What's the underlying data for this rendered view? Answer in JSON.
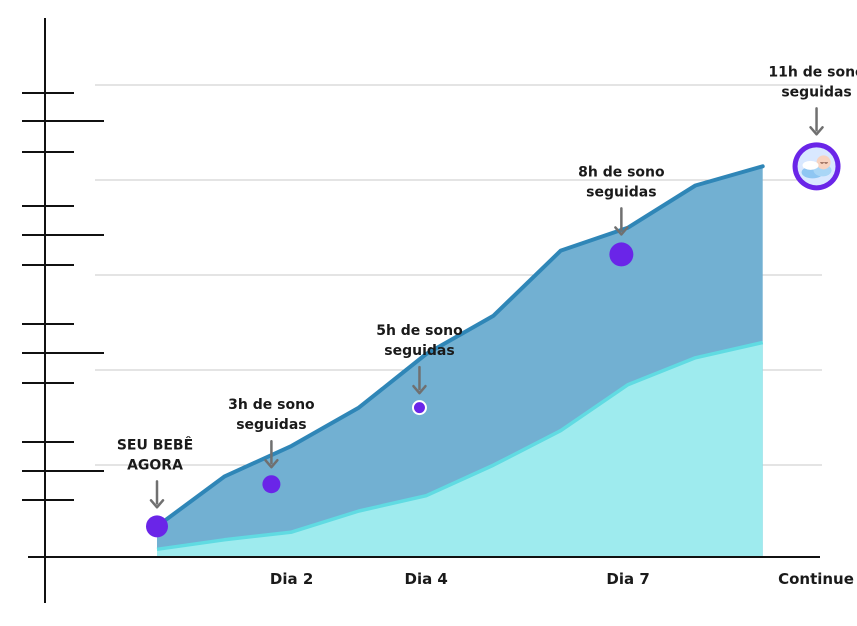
{
  "chart_data": {
    "type": "area",
    "x": [
      0,
      1,
      2,
      3,
      4,
      5,
      6,
      7,
      8,
      9
    ],
    "series": [
      {
        "values": [
          0.8,
          2.1,
          2.9,
          3.9,
          5.3,
          6.3,
          8.0,
          8.6,
          9.7,
          10.2
        ]
      },
      {
        "values": [
          0.2,
          0.45,
          0.65,
          1.2,
          1.6,
          2.4,
          3.3,
          4.5,
          5.2,
          5.6
        ]
      }
    ],
    "x_ticks": [
      {
        "x": 2,
        "label": "Dia 2"
      },
      {
        "x": 4,
        "label": "Dia 4"
      },
      {
        "x": 7,
        "label": "Dia 7"
      },
      {
        "x": 10,
        "label": "Continue",
        "icon": "heart-icon"
      }
    ],
    "markers": [
      {
        "x": 0,
        "y": 0.8,
        "lines": [
          "SEU BEBÊ",
          "AGORA"
        ]
      },
      {
        "x": 1.7,
        "y": 1.9,
        "lines": [
          "3h de sono",
          "seguidas"
        ]
      },
      {
        "x": 3.9,
        "y": 3.9,
        "lines": [
          "5h de sono",
          "seguidas"
        ]
      },
      {
        "x": 6.9,
        "y": 7.9,
        "lines": [
          "8h de sono",
          "seguidas"
        ]
      },
      {
        "x": 9.8,
        "y": 10.2,
        "lines": [
          "11h de sono",
          "seguidas"
        ],
        "icon": "sleeping-baby-icon"
      }
    ],
    "ylim": [
      0,
      11
    ],
    "grid": true,
    "colors": {
      "upper_area": "#72b0d2",
      "upper_line": "#2f86b7",
      "lower_area": "#9eebee",
      "lower_line": "#60dbe2",
      "marker": "#6a25e8",
      "heart": "#e8201f",
      "arrow": "#707070",
      "axis": "#111111",
      "grid": "#c9c9c9"
    }
  }
}
